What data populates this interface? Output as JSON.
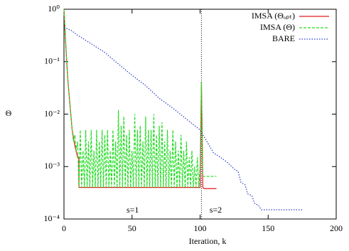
{
  "chart_data": {
    "type": "line",
    "xlabel": "Iteration, k",
    "ylabel": "Θ",
    "xlim": [
      0,
      200
    ],
    "xticks": [
      0,
      50,
      100,
      150,
      200
    ],
    "ylim": [
      0.0001,
      1
    ],
    "log_y": true,
    "yticks": [
      {
        "value": 1,
        "label": "10⁰"
      },
      {
        "value": 0.1,
        "label": "10⁻¹"
      },
      {
        "value": 0.01,
        "label": "10⁻²"
      },
      {
        "value": 0.001,
        "label": "10⁻³"
      },
      {
        "value": 0.0001,
        "label": "10⁻⁴"
      }
    ],
    "legend": "top-right",
    "vline": 101,
    "annotations": [
      "s=1",
      "s=2"
    ],
    "series": [
      {
        "name": "IMSA (Θₒₚₜ)",
        "color": "#e31a1c",
        "style": "solid",
        "x": [
          0,
          1,
          2,
          3,
          4,
          5,
          6,
          8,
          10,
          11,
          11,
          100,
          101,
          102,
          103,
          112
        ],
        "values": [
          1,
          0.3,
          0.1,
          0.04,
          0.02,
          0.01,
          0.005,
          0.0025,
          0.0015,
          0.0015,
          0.0004,
          0.0004,
          0.04,
          0.0004,
          0.00038,
          0.00038
        ]
      },
      {
        "name": "IMSA (Θ)",
        "color": "#22dd22",
        "style": "dashed",
        "x": [
          0,
          1,
          2,
          3,
          4,
          5,
          6,
          7,
          8,
          9,
          10,
          11,
          12,
          13,
          14,
          15,
          16,
          17,
          18,
          19,
          20,
          21,
          22,
          23,
          24,
          25,
          26,
          27,
          28,
          29,
          30,
          31,
          32,
          33,
          34,
          35,
          36,
          37,
          38,
          39,
          40,
          41,
          42,
          43,
          44,
          45,
          46,
          47,
          48,
          49,
          50,
          51,
          52,
          53,
          54,
          55,
          56,
          57,
          58,
          59,
          60,
          61,
          62,
          63,
          64,
          65,
          66,
          67,
          68,
          69,
          70,
          71,
          72,
          73,
          74,
          75,
          76,
          77,
          78,
          79,
          80,
          81,
          82,
          83,
          84,
          85,
          86,
          87,
          88,
          89,
          90,
          91,
          92,
          93,
          94,
          95,
          96,
          97,
          98,
          99,
          100,
          101,
          102,
          112
        ],
        "values": [
          1,
          0.3,
          0.1,
          0.04,
          0.02,
          0.01,
          0.005,
          0.003,
          0.004,
          0.002,
          0.003,
          0.0004,
          0.005,
          0.0004,
          0.002,
          0.0004,
          0.005,
          0.0004,
          0.003,
          0.0004,
          0.005,
          0.0004,
          0.002,
          0.0004,
          0.005,
          0.0004,
          0.003,
          0.0004,
          0.005,
          0.0004,
          0.004,
          0.0004,
          0.005,
          0.0004,
          0.002,
          0.0004,
          0.005,
          0.0004,
          0.003,
          0.0004,
          0.012,
          0.0004,
          0.006,
          0.0004,
          0.009,
          0.0004,
          0.004,
          0.0004,
          0.005,
          0.0004,
          0.002,
          0.0004,
          0.01,
          0.0004,
          0.005,
          0.0004,
          0.006,
          0.0004,
          0.003,
          0.0004,
          0.009,
          0.0004,
          0.005,
          0.0004,
          0.005,
          0.0004,
          0.01,
          0.0004,
          0.004,
          0.0004,
          0.006,
          0.0004,
          0.007,
          0.0004,
          0.003,
          0.0004,
          0.005,
          0.0004,
          0.002,
          0.0004,
          0.005,
          0.0004,
          0.003,
          0.0004,
          0.002,
          0.0004,
          0.004,
          0.0004,
          0.002,
          0.0004,
          0.003,
          0.0004,
          0.0015,
          0.0004,
          0.002,
          0.0004,
          0.001,
          0.0004,
          0.0015,
          0.0004,
          0.001,
          0.04,
          0.00065,
          0.00065
        ]
      },
      {
        "name": "BARE",
        "color": "#2a3cc8",
        "style": "dotted",
        "x": [
          0,
          5,
          10,
          20,
          30,
          40,
          50,
          60,
          70,
          80,
          90,
          100,
          105,
          110,
          115,
          120,
          125,
          128,
          130,
          133,
          135,
          138,
          140,
          143,
          145,
          176
        ],
        "values": [
          0.45,
          0.4,
          0.32,
          0.22,
          0.15,
          0.09,
          0.055,
          0.035,
          0.02,
          0.013,
          0.008,
          0.005,
          0.003,
          0.0018,
          0.0015,
          0.0012,
          0.0009,
          0.0008,
          0.0005,
          0.00045,
          0.0003,
          0.00028,
          0.0002,
          0.00018,
          0.00015,
          0.00015
        ]
      }
    ]
  }
}
